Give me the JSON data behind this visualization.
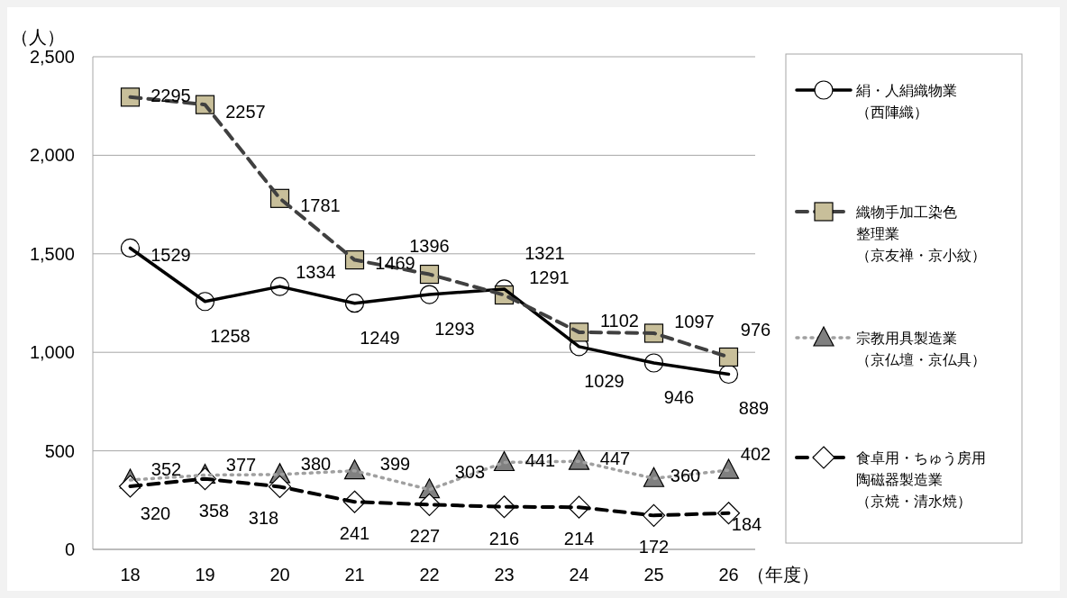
{
  "chart_data": {
    "type": "line",
    "ylabel": "（人）",
    "xlabel": "（年度）",
    "categories": [
      "18",
      "19",
      "20",
      "21",
      "22",
      "23",
      "24",
      "25",
      "26"
    ],
    "series": [
      {
        "name": "絹・人絹織物業（西陣織）",
        "color": "#000000",
        "marker": "circle",
        "line_style": "solid",
        "values": [
          1529,
          1258,
          1334,
          1249,
          1293,
          1321,
          1029,
          946,
          889
        ]
      },
      {
        "name": "織物手加工染色整理業（京友禅・京小紋）",
        "color": "#c8bf9a",
        "marker": "square",
        "line_style": "dashed",
        "values": [
          2295,
          2257,
          1781,
          1469,
          1396,
          1291,
          1102,
          1097,
          976
        ]
      },
      {
        "name": "宗教用具製造業（京仏壇・京仏具）",
        "color": "#808080",
        "marker": "triangle",
        "line_style": "dotted",
        "values": [
          352,
          377,
          380,
          399,
          303,
          441,
          447,
          360,
          402
        ]
      },
      {
        "name": "食卓用・ちゅう房用陶磁器製造業（京焼・清水焼）",
        "color": "#000000",
        "marker": "diamond",
        "line_style": "dashed",
        "values": [
          320,
          358,
          318,
          241,
          227,
          216,
          214,
          172,
          184
        ]
      }
    ],
    "ylim": [
      0,
      2500
    ],
    "yticks": [
      {
        "value": 0,
        "label": "0"
      },
      {
        "value": 500,
        "label": "500"
      },
      {
        "value": 1000,
        "label": "1,000"
      },
      {
        "value": 1500,
        "label": "1,500"
      },
      {
        "value": 2000,
        "label": "2,000"
      },
      {
        "value": 2500,
        "label": "2,500"
      }
    ],
    "grid": "y",
    "legend": "right",
    "data_labels": true
  }
}
